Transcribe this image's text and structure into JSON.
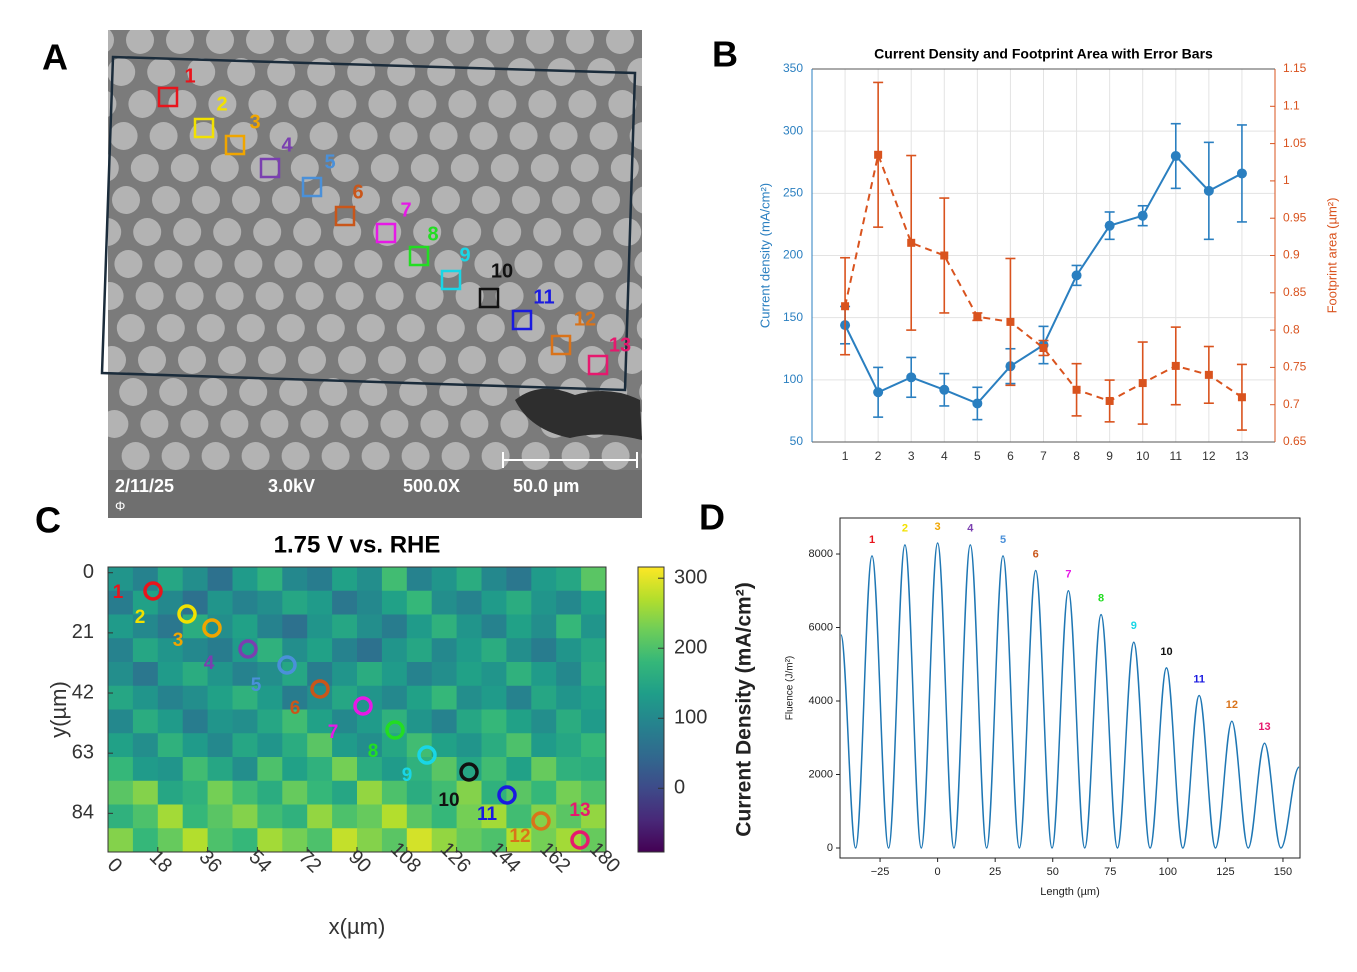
{
  "image_panel": {
    "panel_label": "A",
    "info": [
      "2/11/25",
      "3.0kV",
      "500.0X",
      "50.0 µm"
    ],
    "symbol": "Φ"
  },
  "regions": [
    {
      "label": "1",
      "color": "#e8141c"
    },
    {
      "label": "2",
      "color": "#f2e100"
    },
    {
      "label": "3",
      "color": "#f0a500"
    },
    {
      "label": "4",
      "color": "#7a3fb0"
    },
    {
      "label": "5",
      "color": "#4a90d9"
    },
    {
      "label": "6",
      "color": "#c9561a"
    },
    {
      "label": "7",
      "color": "#e619e6"
    },
    {
      "label": "8",
      "color": "#22dd22"
    },
    {
      "label": "9",
      "color": "#19d6e6"
    },
    {
      "label": "10",
      "color": "#111111"
    },
    {
      "label": "11",
      "color": "#1a1ae0"
    },
    {
      "label": "12",
      "color": "#d9731a"
    },
    {
      "label": "13",
      "color": "#e6196e"
    }
  ],
  "chart_data": [
    {
      "type": "errorbar",
      "panel_label": "B",
      "title": "Current Density and Footprint Area with Error Bars",
      "x": [
        1,
        2,
        3,
        4,
        5,
        6,
        7,
        8,
        9,
        10,
        11,
        12,
        13
      ],
      "xlim": [
        0,
        14
      ],
      "xticks": [
        1,
        2,
        3,
        4,
        5,
        6,
        7,
        8,
        9,
        10,
        11,
        12,
        13
      ],
      "ylim": [
        50,
        350
      ],
      "yticks": [
        50,
        100,
        150,
        200,
        250,
        300,
        350
      ],
      "y2lim": [
        0.65,
        1.15
      ],
      "y2ticks": [
        0.65,
        0.7,
        0.75,
        0.8,
        0.85,
        0.9,
        0.95,
        1,
        1.05,
        1.1,
        1.15
      ],
      "ylabel": "Current density (mA/cm²)",
      "y2label": "Footprint area (µm²)",
      "grid": true,
      "series": [
        {
          "color": "#2a7fc0",
          "marker": "circle",
          "linestyle": "solid",
          "values": [
            144,
            90,
            102,
            92,
            81,
            111,
            128,
            184,
            224,
            232,
            280,
            252,
            266
          ],
          "errors": [
            15,
            20,
            16,
            13,
            13,
            14,
            15,
            8,
            11,
            8,
            26,
            39,
            39
          ]
        },
        {
          "axis": "y2",
          "color": "#d9531e",
          "marker": "square",
          "linestyle": "dashed",
          "values": [
            0.832,
            1.035,
            0.917,
            0.9,
            0.818,
            0.811,
            0.776,
            0.72,
            0.705,
            0.729,
            0.752,
            0.74,
            0.71
          ],
          "errors": [
            0.065,
            0.097,
            0.117,
            0.077,
            0.005,
            0.085,
            0.01,
            0.035,
            0.028,
            0.055,
            0.052,
            0.038,
            0.044
          ]
        }
      ]
    },
    {
      "type": "heatmap",
      "panel_label": "C",
      "title": "1.75 V vs. RHE",
      "xlim": [
        0,
        180
      ],
      "xticks": [
        0,
        18,
        36,
        54,
        72,
        90,
        108,
        126,
        144,
        162,
        180
      ],
      "ylim": [
        -2,
        97.5
      ],
      "y_inverted": true,
      "yticks": [
        0,
        21,
        42,
        63,
        84
      ],
      "xlabel": "x(µm)",
      "ylabel": "y(µm)",
      "colormap": "viridis",
      "colorbar": {
        "label": "Current Density (mA/cm²)",
        "lim": [
          -91,
          316
        ],
        "ticks": [
          0,
          100,
          200,
          300
        ]
      },
      "z": [
        [
          120,
          90,
          150,
          110,
          60,
          130,
          170,
          100,
          80,
          140,
          110,
          190,
          90,
          120,
          160,
          100,
          70,
          130,
          150,
          210
        ],
        [
          80,
          140,
          100,
          60,
          120,
          90,
          110,
          150,
          130,
          70,
          100,
          140,
          180,
          110,
          90,
          130,
          160,
          120,
          100,
          140
        ],
        [
          130,
          100,
          70,
          160,
          110,
          140,
          90,
          60,
          120,
          150,
          110,
          80,
          130,
          170,
          120,
          90,
          140,
          110,
          180,
          120
        ],
        [
          90,
          150,
          120,
          100,
          80,
          130,
          170,
          110,
          140,
          90,
          60,
          120,
          150,
          100,
          130,
          160,
          110,
          80,
          120,
          150
        ],
        [
          110,
          70,
          130,
          160,
          120,
          90,
          110,
          150,
          80,
          120,
          160,
          130,
          90,
          110,
          140,
          120,
          170,
          130,
          100,
          160
        ],
        [
          150,
          120,
          90,
          110,
          140,
          170,
          130,
          80,
          110,
          150,
          120,
          100,
          140,
          180,
          110,
          130,
          90,
          150,
          120,
          140
        ],
        [
          100,
          160,
          130,
          80,
          120,
          110,
          150,
          190,
          140,
          100,
          130,
          170,
          120,
          90,
          150,
          180,
          140,
          110,
          160,
          130
        ],
        [
          140,
          110,
          170,
          130,
          100,
          150,
          120,
          160,
          210,
          130,
          110,
          150,
          190,
          140,
          120,
          160,
          200,
          130,
          150,
          180
        ],
        [
          180,
          130,
          120,
          190,
          150,
          110,
          200,
          140,
          170,
          230,
          160,
          130,
          170,
          210,
          150,
          190,
          140,
          220,
          170,
          160
        ],
        [
          210,
          240,
          150,
          170,
          230,
          190,
          160,
          220,
          180,
          150,
          250,
          200,
          160,
          190,
          240,
          170,
          210,
          180,
          230,
          200
        ],
        [
          170,
          200,
          260,
          180,
          210,
          240,
          190,
          170,
          250,
          200,
          220,
          270,
          210,
          180,
          230,
          260,
          190,
          240,
          210,
          250
        ],
        [
          240,
          180,
          220,
          270,
          200,
          180,
          260,
          230,
          200,
          280,
          240,
          210,
          290,
          250,
          220,
          200,
          270,
          230,
          260,
          220
        ]
      ]
    },
    {
      "type": "line",
      "panel_label": "D",
      "x": [
        -42,
        -35.6,
        -28.5,
        -21.3,
        -14.2,
        -7.1,
        0,
        7.1,
        14.2,
        21.3,
        28.4,
        35.5,
        42.6,
        49.7,
        56.8,
        63.9,
        71,
        78.1,
        85.2,
        92.3,
        99.4,
        106.5,
        113.6,
        120.7,
        127.8,
        134.9,
        142,
        149.1,
        157
      ],
      "series": [
        {
          "color": "#1f77b4",
          "values": [
            5800,
            0,
            7950,
            0,
            8250,
            0,
            8300,
            0,
            8250,
            0,
            7950,
            0,
            7550,
            0,
            7000,
            0,
            6350,
            0,
            5600,
            0,
            4900,
            0,
            4150,
            0,
            3450,
            0,
            2850,
            0,
            2200
          ]
        }
      ],
      "xlim": [
        -42.4,
        157.4
      ],
      "xticks": [
        {
          "value": -25,
          "label": "−25"
        },
        0,
        25,
        50,
        75,
        100,
        125,
        150
      ],
      "ylim": [
        -272,
        8980
      ],
      "yticks": [
        0,
        2000,
        4000,
        6000,
        8000
      ],
      "xlabel": "Length (µm)",
      "ylabel": "Fluence (J/m²)"
    }
  ]
}
